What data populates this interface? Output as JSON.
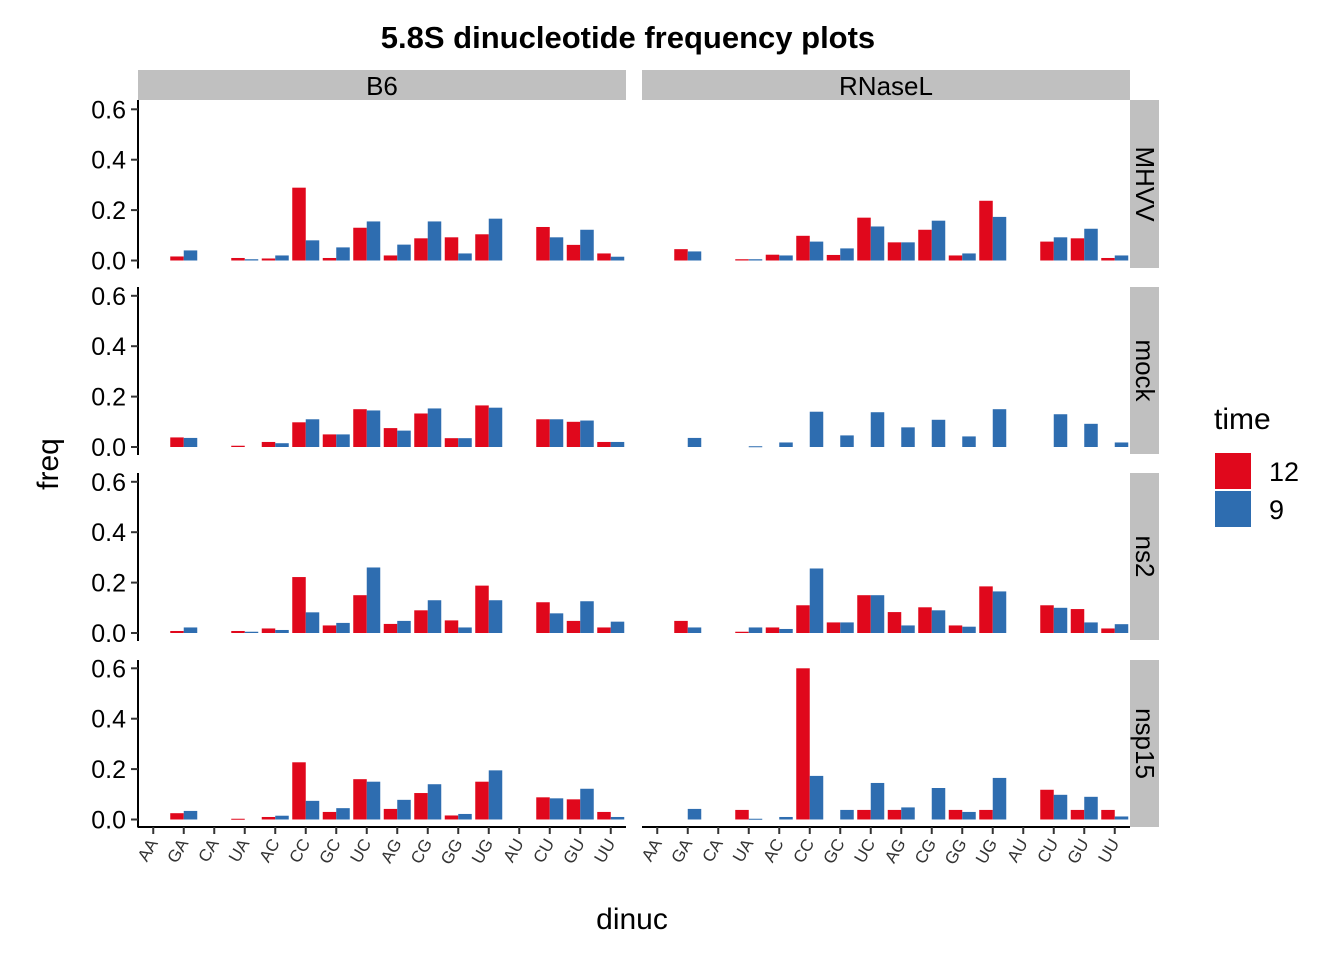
{
  "chart_data": {
    "type": "bar",
    "title": "5.8S dinucleotide frequency plots",
    "xlabel": "dinuc",
    "ylabel": "freq",
    "ylim": [
      0,
      0.63
    ],
    "yticks": [
      "0.0",
      "0.2",
      "0.4",
      "0.6"
    ],
    "categories": [
      "AA",
      "GA",
      "CA",
      "UA",
      "AC",
      "CC",
      "GC",
      "UC",
      "AG",
      "CG",
      "GG",
      "UG",
      "AU",
      "CU",
      "GU",
      "UU"
    ],
    "facet_columns": [
      "B6",
      "RNaseL"
    ],
    "facet_rows": [
      "MHVV",
      "mock",
      "ns2",
      "nsp15"
    ],
    "legend": {
      "title": "time",
      "position": "right",
      "entries": [
        {
          "label": "12",
          "color": "#E0081C"
        },
        {
          "label": "9",
          "color": "#2E6DB0"
        }
      ]
    },
    "grid": false,
    "panels": [
      {
        "column": "B6",
        "row": "MHVV",
        "series": [
          {
            "name": "12",
            "values": [
              null,
              0.016,
              null,
              0.01,
              0.008,
              0.289,
              0.01,
              0.13,
              0.02,
              0.088,
              0.092,
              0.104,
              null,
              0.133,
              0.062,
              0.028
            ]
          },
          {
            "name": "9",
            "values": [
              null,
              0.04,
              null,
              0.005,
              0.02,
              0.08,
              0.052,
              0.155,
              0.063,
              0.155,
              0.028,
              0.166,
              null,
              0.092,
              0.122,
              0.015
            ]
          }
        ]
      },
      {
        "column": "RNaseL",
        "row": "MHVV",
        "series": [
          {
            "name": "12",
            "values": [
              null,
              0.045,
              null,
              0.005,
              0.023,
              0.098,
              0.022,
              0.17,
              0.072,
              0.122,
              0.02,
              0.237,
              null,
              0.075,
              0.088,
              0.01
            ]
          },
          {
            "name": "9",
            "values": [
              null,
              0.036,
              null,
              0.005,
              0.02,
              0.075,
              0.048,
              0.135,
              0.072,
              0.158,
              0.028,
              0.173,
              null,
              0.092,
              0.126,
              0.02
            ]
          }
        ]
      },
      {
        "column": "B6",
        "row": "mock",
        "series": [
          {
            "name": "12",
            "values": [
              null,
              0.038,
              null,
              0.005,
              0.02,
              0.098,
              0.05,
              0.15,
              0.075,
              0.133,
              0.035,
              0.165,
              null,
              0.11,
              0.1,
              0.02
            ]
          },
          {
            "name": "9",
            "values": [
              null,
              0.036,
              null,
              null,
              0.015,
              0.11,
              0.05,
              0.145,
              0.065,
              0.153,
              0.035,
              0.156,
              null,
              0.11,
              0.105,
              0.02
            ]
          }
        ]
      },
      {
        "column": "RNaseL",
        "row": "mock",
        "series": [
          {
            "name": "12",
            "values": [
              null,
              null,
              null,
              null,
              null,
              null,
              null,
              null,
              null,
              null,
              null,
              null,
              null,
              null,
              null,
              null
            ]
          },
          {
            "name": "9",
            "values": [
              null,
              0.036,
              null,
              0.003,
              0.018,
              0.14,
              0.046,
              0.138,
              0.078,
              0.108,
              0.042,
              0.15,
              null,
              0.13,
              0.092,
              0.018
            ]
          }
        ]
      },
      {
        "column": "B6",
        "row": "ns2",
        "series": [
          {
            "name": "12",
            "values": [
              null,
              0.008,
              null,
              0.008,
              0.018,
              0.222,
              0.03,
              0.15,
              0.036,
              0.09,
              0.05,
              0.188,
              null,
              0.122,
              0.048,
              0.022
            ]
          },
          {
            "name": "9",
            "values": [
              null,
              0.022,
              null,
              0.005,
              0.012,
              0.082,
              0.04,
              0.26,
              0.048,
              0.13,
              0.022,
              0.13,
              null,
              0.078,
              0.126,
              0.045
            ]
          }
        ]
      },
      {
        "column": "RNaseL",
        "row": "ns2",
        "series": [
          {
            "name": "12",
            "values": [
              null,
              0.048,
              null,
              0.005,
              0.022,
              0.11,
              0.042,
              0.15,
              0.083,
              0.102,
              0.03,
              0.185,
              null,
              0.11,
              0.095,
              0.018
            ]
          },
          {
            "name": "9",
            "values": [
              null,
              0.022,
              null,
              0.022,
              0.016,
              0.256,
              0.042,
              0.15,
              0.03,
              0.09,
              0.025,
              0.165,
              null,
              0.1,
              0.042,
              0.035
            ]
          }
        ]
      },
      {
        "column": "B6",
        "row": "nsp15",
        "series": [
          {
            "name": "12",
            "values": [
              null,
              0.025,
              null,
              0.003,
              0.01,
              0.227,
              0.03,
              0.16,
              0.042,
              0.105,
              0.016,
              0.15,
              null,
              0.088,
              0.08,
              0.03
            ]
          },
          {
            "name": "9",
            "values": [
              null,
              0.034,
              null,
              null,
              0.015,
              0.074,
              0.045,
              0.15,
              0.078,
              0.14,
              0.022,
              0.195,
              null,
              0.084,
              0.122,
              0.01
            ]
          }
        ]
      },
      {
        "column": "RNaseL",
        "row": "nsp15",
        "series": [
          {
            "name": "12",
            "values": [
              null,
              null,
              null,
              0.038,
              null,
              0.6,
              null,
              0.038,
              0.038,
              null,
              0.038,
              0.038,
              null,
              0.118,
              0.038,
              0.038
            ]
          },
          {
            "name": "9",
            "values": [
              null,
              0.042,
              null,
              0.003,
              0.01,
              0.173,
              0.038,
              0.145,
              0.048,
              0.125,
              0.03,
              0.165,
              null,
              0.098,
              0.09,
              0.012
            ]
          }
        ]
      }
    ]
  }
}
